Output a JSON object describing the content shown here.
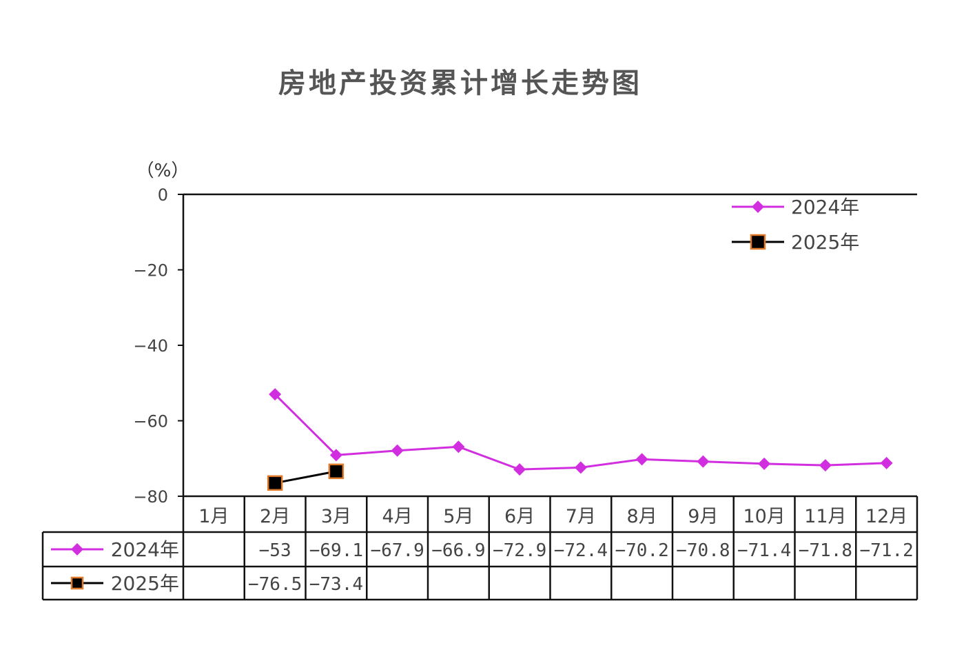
{
  "chart_data": {
    "type": "line",
    "title": "房地产投资累计增长走势图",
    "ylabel": "（%）",
    "ylim": [
      -80,
      0
    ],
    "yticks": [
      "0",
      "−20",
      "−40",
      "−60",
      "−80"
    ],
    "ytick_values": [
      0,
      -20,
      -40,
      -60,
      -80
    ],
    "categories": [
      "1月",
      "2月",
      "3月",
      "4月",
      "5月",
      "6月",
      "7月",
      "8月",
      "9月",
      "10月",
      "11月",
      "12月"
    ],
    "series": [
      {
        "name": "2024年",
        "color": "#d12ee0",
        "marker": "diamond",
        "values": [
          null,
          -53,
          -69.1,
          -67.9,
          -66.9,
          -72.9,
          -72.4,
          -70.2,
          -70.8,
          -71.4,
          -71.8,
          -71.2
        ],
        "labels": [
          "",
          "−53",
          "−69.1",
          "−67.9",
          "−66.9",
          "−72.9",
          "−72.4",
          "−70.2",
          "−70.8",
          "−71.4",
          "−71.8",
          "−71.2"
        ]
      },
      {
        "name": "2025年",
        "color": "#000000",
        "marker_edge": "#e07b2c",
        "marker": "square",
        "values": [
          null,
          -76.5,
          -73.4,
          null,
          null,
          null,
          null,
          null,
          null,
          null,
          null,
          null
        ],
        "labels": [
          "",
          "−76.5",
          "−73.4",
          "",
          "",
          "",
          "",
          "",
          "",
          "",
          "",
          ""
        ]
      }
    ],
    "legend_position": "top-right",
    "grid": false,
    "data_table": true
  }
}
